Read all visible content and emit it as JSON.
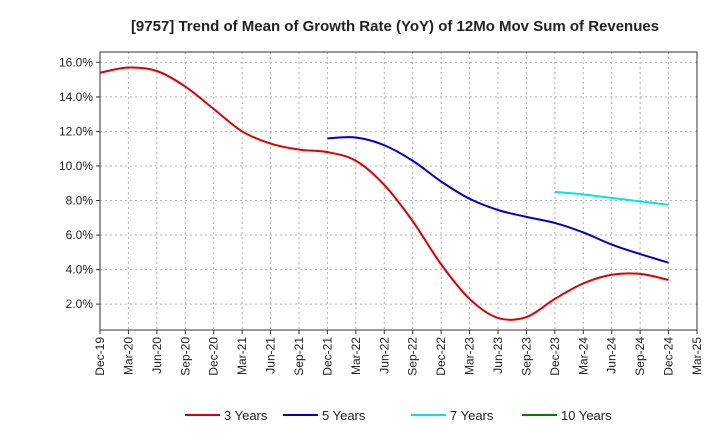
{
  "chart_data": {
    "type": "line",
    "title": "[9757]  Trend of Mean of Growth Rate (YoY) of 12Mo Mov Sum of Revenues",
    "xlabel": "",
    "ylabel": "",
    "grid": true,
    "legend_placement": "bottom",
    "x_tick_labels": [
      "Dec-19",
      "Mar-20",
      "Jun-20",
      "Sep-20",
      "Dec-20",
      "Mar-21",
      "Jun-21",
      "Sep-21",
      "Dec-21",
      "Mar-22",
      "Jun-22",
      "Sep-22",
      "Dec-22",
      "Mar-23",
      "Jun-23",
      "Sep-23",
      "Dec-23",
      "Mar-24",
      "Jun-24",
      "Sep-24",
      "Dec-24",
      "Mar-25"
    ],
    "y_ticks": [
      2.0,
      4.0,
      6.0,
      8.0,
      10.0,
      12.0,
      14.0,
      16.0
    ],
    "y_tick_labels": [
      "2.0%",
      "4.0%",
      "6.0%",
      "8.0%",
      "10.0%",
      "12.0%",
      "14.0%",
      "16.0%"
    ],
    "ylim": [
      0.5,
      16.6
    ],
    "series": [
      {
        "name": "3 Years",
        "color": "#dd0000",
        "start_index": 0,
        "values": [
          15.4,
          15.7,
          15.5,
          14.6,
          13.3,
          12.0,
          11.3,
          10.95,
          10.8,
          10.3,
          8.9,
          6.8,
          4.3,
          2.3,
          1.2,
          1.25,
          2.3,
          3.2,
          3.7,
          3.75,
          3.4
        ]
      },
      {
        "name": "5 Years",
        "color": "#0000cc",
        "start_index": 8,
        "values": [
          11.6,
          11.65,
          11.2,
          10.3,
          9.1,
          8.1,
          7.45,
          7.05,
          6.7,
          6.15,
          5.45,
          4.9,
          4.4
        ]
      },
      {
        "name": "7 Years",
        "color": "#00e5e5",
        "start_index": 16,
        "values": [
          8.5,
          8.35,
          8.15,
          7.95,
          7.75
        ]
      },
      {
        "name": "10 Years",
        "color": "#008000",
        "start_index": 0,
        "values": []
      }
    ]
  }
}
